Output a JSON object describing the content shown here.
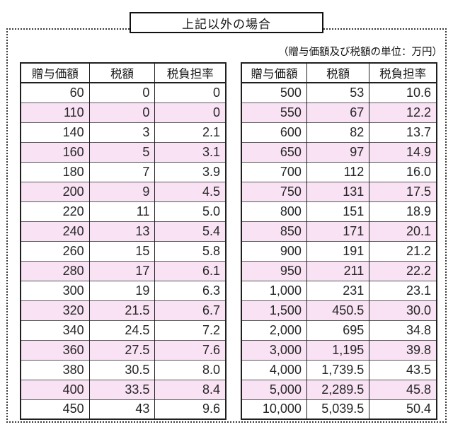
{
  "title": "上記以外の場合",
  "unit_note": "（贈与価額及び税額の単位：万円）",
  "columns": [
    "贈与価額",
    "税額",
    "税負担率"
  ],
  "tables": {
    "left": {
      "rows": [
        [
          "60",
          "0",
          "0"
        ],
        [
          "110",
          "0",
          "0"
        ],
        [
          "140",
          "3",
          "2.1"
        ],
        [
          "160",
          "5",
          "3.1"
        ],
        [
          "180",
          "7",
          "3.9"
        ],
        [
          "200",
          "9",
          "4.5"
        ],
        [
          "220",
          "11",
          "5.0"
        ],
        [
          "240",
          "13",
          "5.4"
        ],
        [
          "260",
          "15",
          "5.8"
        ],
        [
          "280",
          "17",
          "6.1"
        ],
        [
          "300",
          "19",
          "6.3"
        ],
        [
          "320",
          "21.5",
          "6.7"
        ],
        [
          "340",
          "24.5",
          "7.2"
        ],
        [
          "360",
          "27.5",
          "7.6"
        ],
        [
          "380",
          "30.5",
          "8.0"
        ],
        [
          "400",
          "33.5",
          "8.4"
        ],
        [
          "450",
          "43",
          "9.6"
        ]
      ]
    },
    "right": {
      "rows": [
        [
          "500",
          "53",
          "10.6"
        ],
        [
          "550",
          "67",
          "12.2"
        ],
        [
          "600",
          "82",
          "13.7"
        ],
        [
          "650",
          "97",
          "14.9"
        ],
        [
          "700",
          "112",
          "16.0"
        ],
        [
          "750",
          "131",
          "17.5"
        ],
        [
          "800",
          "151",
          "18.9"
        ],
        [
          "850",
          "171",
          "20.1"
        ],
        [
          "900",
          "191",
          "21.2"
        ],
        [
          "950",
          "211",
          "22.2"
        ],
        [
          "1,000",
          "231",
          "23.1"
        ],
        [
          "1,500",
          "450.5",
          "30.0"
        ],
        [
          "2,000",
          "695",
          "34.8"
        ],
        [
          "3,000",
          "1,195",
          "39.8"
        ],
        [
          "4,000",
          "1,739.5",
          "43.5"
        ],
        [
          "5,000",
          "2,289.5",
          "45.8"
        ],
        [
          "10,000",
          "5,039.5",
          "50.4"
        ]
      ]
    }
  },
  "colors": {
    "stripe_pink": "#f8e2f4",
    "border_black": "#1f1f1f",
    "grid_gray": "#5a5a5a"
  }
}
